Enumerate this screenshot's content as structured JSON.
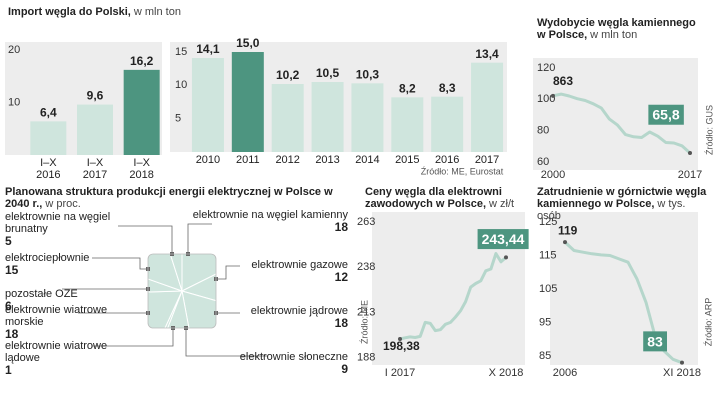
{
  "chart_data": [
    {
      "type": "bar",
      "title": "Import węgla do Polski,",
      "subtitle": "w mln ton",
      "categories": [
        "I–X\n2016",
        "I–X\n2017",
        "I–X\n2018"
      ],
      "values": [
        6.4,
        9.6,
        16.2
      ],
      "value_labels": [
        "6,4",
        "9,6",
        "16,2"
      ],
      "colors": [
        "#cfe5dd",
        "#cfe5dd",
        "#4d9580"
      ],
      "ylim": [
        0,
        21.5
      ],
      "yticks": [
        10,
        20
      ]
    },
    {
      "type": "bar",
      "categories": [
        "2010",
        "2011",
        "2012",
        "2013",
        "2014",
        "2015",
        "2016",
        "2017"
      ],
      "values": [
        14.1,
        15.0,
        10.2,
        10.5,
        10.3,
        8.2,
        8.3,
        13.4
      ],
      "value_labels": [
        "14,1",
        "15,0",
        "10,2",
        "10,5",
        "10,3",
        "8,2",
        "8,3",
        "13,4"
      ],
      "colors": [
        "#cfe5dd",
        "#4d9580",
        "#cfe5dd",
        "#cfe5dd",
        "#cfe5dd",
        "#cfe5dd",
        "#cfe5dd",
        "#cfe5dd"
      ],
      "ylim": [
        0,
        16.5
      ],
      "yticks": [
        5,
        10,
        15
      ],
      "source": "Źródło: ME, Eurostat"
    },
    {
      "type": "line",
      "title": "Wydobycie węgla kamiennego w Polsce,",
      "subtitle": "w mln ton",
      "x": [
        2000,
        2001,
        2002,
        2003,
        2004,
        2005,
        2006,
        2007,
        2008,
        2009,
        2010,
        2011,
        2012,
        2013,
        2014,
        2015,
        2016,
        2017
      ],
      "values": [
        102.2,
        103.3,
        102.1,
        100.4,
        99.2,
        97.1,
        94.4,
        87.4,
        83.6,
        77.5,
        76.1,
        75.7,
        79.2,
        76.5,
        72.5,
        72.2,
        70.4,
        65.8
      ],
      "value_labels": [
        null,
        null,
        null,
        null,
        null,
        null,
        null,
        null,
        null,
        null,
        null,
        null,
        null,
        null,
        null,
        null,
        null,
        "65,8"
      ],
      "annotations": [
        "863"
      ],
      "color": "#b5d6cb",
      "xlim": [
        2000,
        2017
      ],
      "xticks": [
        2000,
        2017
      ],
      "ylim": [
        55,
        125
      ],
      "yticks": [
        60,
        80,
        100,
        120
      ],
      "source": "Źródło: GUS"
    },
    {
      "type": "pie",
      "title": "Planowana struktura produkcji energii elektrycznej w Polsce w 2040 r.,",
      "subtitle": "w proc.",
      "categories": [
        "elektrownie na węgiel kamienny",
        "elektrownie gazowe",
        "elektrownie jądrowe",
        "elektrownie słoneczne",
        "elektrownie wiatrowe\nlądowe",
        "elektrownie wiatrowe\nmorskie",
        "pozostałe OZE",
        "elektrociepłownie",
        "elektrownie na węgiel\nbrunatny"
      ],
      "values": [
        18,
        12,
        18,
        9,
        1,
        18,
        6,
        15,
        5
      ],
      "color": "#cfe5dd"
    },
    {
      "type": "line",
      "title": "Ceny węgla dla elektrowni zawodowych w Polsce,",
      "subtitle": "w zł/t",
      "categories": [
        "I 2017",
        null,
        null,
        null,
        null,
        null,
        null,
        null,
        null,
        null,
        null,
        null,
        null,
        null,
        null,
        null,
        null,
        null,
        null,
        null,
        null,
        "X 2018"
      ],
      "values": [
        198.38,
        199.0,
        199.5,
        199.2,
        199.8,
        207.5,
        207.0,
        203.0,
        203.5,
        206.5,
        207.5,
        210.5,
        214.0,
        219.0,
        227.0,
        229.0,
        230.5,
        236.0,
        237.0,
        245.5,
        241.0,
        243.44
      ],
      "value_labels": [
        "198,38",
        null,
        null,
        null,
        null,
        null,
        null,
        null,
        null,
        null,
        null,
        null,
        null,
        null,
        null,
        null,
        null,
        null,
        null,
        null,
        null,
        "243,44"
      ],
      "color": "#b5d6cb",
      "ylim": [
        184,
        268.5
      ],
      "yticks": [
        188,
        213,
        238,
        263
      ],
      "source": "Źródło: ME"
    },
    {
      "type": "line",
      "title": "Zatrudnienie w górnictwie węgla kamiennego w Polsce,",
      "subtitle": "w tys. osób",
      "categories": [
        "2006",
        null,
        null,
        null,
        null,
        null,
        null,
        null,
        null,
        null,
        null,
        null,
        null,
        "XI 2018"
      ],
      "values": [
        119,
        116.5,
        116,
        115.5,
        115.2,
        115,
        114,
        113,
        108,
        101,
        91,
        86.5,
        84,
        83
      ],
      "color": "#b5d6cb",
      "ylim": [
        82.3,
        128
      ],
      "yticks": [
        85,
        95,
        105,
        115,
        125
      ],
      "source": "Źródło: ARP"
    }
  ]
}
